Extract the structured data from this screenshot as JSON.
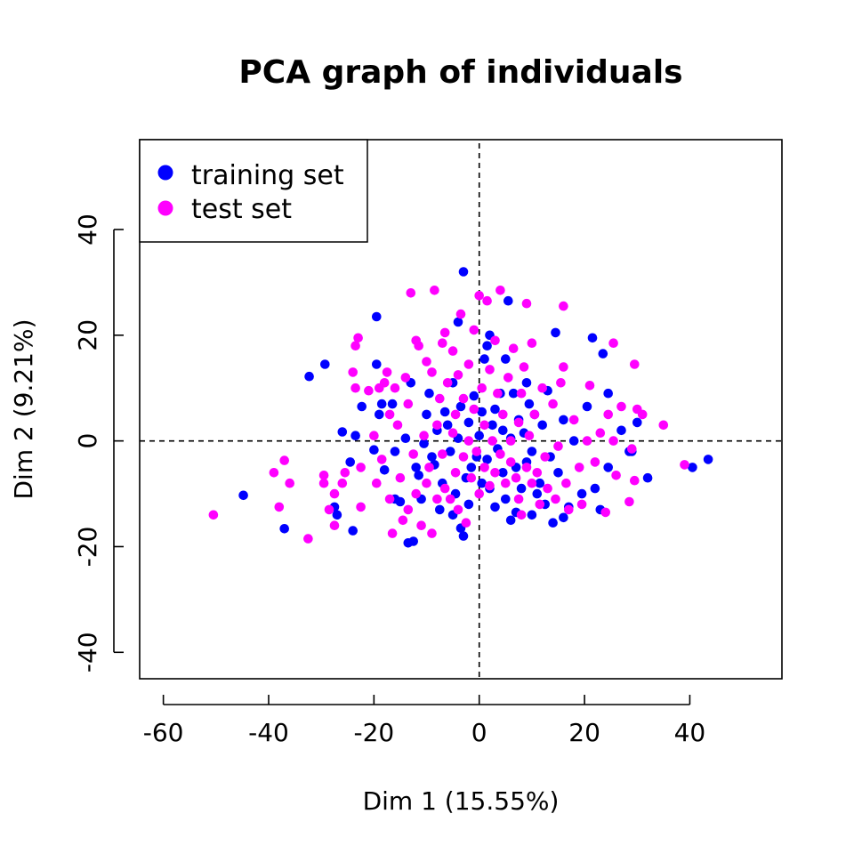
{
  "chart_data": {
    "type": "scatter",
    "title": "PCA graph of individuals",
    "xlabel": "Dim 1 (15.55%)",
    "ylabel": "Dim 2 (9.21%)",
    "xlim": [
      -64.5,
      57.5
    ],
    "ylim": [
      -45,
      57
    ],
    "x_ticks": [
      -60,
      -40,
      -20,
      0,
      20,
      40
    ],
    "y_ticks": [
      -40,
      -20,
      0,
      20,
      40
    ],
    "x_tick_labels": [
      "-60",
      "-40",
      "-20",
      "0",
      "20",
      "40"
    ],
    "y_tick_labels": [
      "-40",
      "-20",
      "0",
      "20",
      "40"
    ],
    "reference_lines": {
      "x": 0,
      "y": 0,
      "style": "dashed"
    },
    "grid": false,
    "legend_position": "top-left",
    "series": [
      {
        "name": "training set",
        "color": "#0000ff",
        "points": [
          [
            -44.8,
            -10.3
          ],
          [
            -37,
            -16.6
          ],
          [
            -32.3,
            12.2
          ],
          [
            -29.3,
            14.5
          ],
          [
            -27,
            -14
          ],
          [
            -27.5,
            -12.5
          ],
          [
            -26,
            1.7
          ],
          [
            -24.5,
            -4
          ],
          [
            -24,
            -17
          ],
          [
            -23.5,
            1
          ],
          [
            -22.3,
            6.5
          ],
          [
            -20,
            -1.7
          ],
          [
            -19.5,
            23.5
          ],
          [
            -19.5,
            14.5
          ],
          [
            -19,
            5
          ],
          [
            -18.5,
            7
          ],
          [
            -18,
            -5.5
          ],
          [
            -16.5,
            7
          ],
          [
            -16,
            -2
          ],
          [
            -16,
            -11
          ],
          [
            -15,
            -11.5
          ],
          [
            -14,
            0.5
          ],
          [
            -13.5,
            -19.3
          ],
          [
            -13,
            11
          ],
          [
            -12.5,
            -19
          ],
          [
            -12,
            -5
          ],
          [
            -11.5,
            -6.5
          ],
          [
            -11,
            -11
          ],
          [
            -10.5,
            -0.5
          ],
          [
            -10,
            5
          ],
          [
            -9.5,
            9
          ],
          [
            -9,
            -3
          ],
          [
            -8.5,
            -4.5
          ],
          [
            -8,
            2
          ],
          [
            -7.5,
            -13
          ],
          [
            -7,
            -8
          ],
          [
            -6.5,
            5.5
          ],
          [
            -6,
            3
          ],
          [
            -5.5,
            -2
          ],
          [
            -5,
            11
          ],
          [
            -5,
            -14
          ],
          [
            -4.5,
            -10
          ],
          [
            -4,
            0.5
          ],
          [
            -4,
            22.5
          ],
          [
            -3.5,
            -16.5
          ],
          [
            -3.5,
            6.5
          ],
          [
            -3,
            -18
          ],
          [
            -3,
            32
          ],
          [
            -2.5,
            -7
          ],
          [
            -2,
            3.5
          ],
          [
            -2,
            -12
          ],
          [
            -1.5,
            -5
          ],
          [
            -1,
            8.5
          ],
          [
            -0.5,
            -3
          ],
          [
            0,
            1
          ],
          [
            0.5,
            5.5
          ],
          [
            0.5,
            -8
          ],
          [
            1,
            15.5
          ],
          [
            1.5,
            -3.5
          ],
          [
            1.5,
            18
          ],
          [
            2,
            20
          ],
          [
            2,
            -9
          ],
          [
            2.5,
            3
          ],
          [
            3,
            6
          ],
          [
            3,
            -12.5
          ],
          [
            3.5,
            -1.5
          ],
          [
            4,
            9
          ],
          [
            4.5,
            2
          ],
          [
            4.5,
            -6
          ],
          [
            5,
            15.5
          ],
          [
            5,
            -11
          ],
          [
            5.5,
            26.5
          ],
          [
            6,
            0.5
          ],
          [
            6,
            -15
          ],
          [
            6.5,
            9
          ],
          [
            7,
            -5
          ],
          [
            7,
            -13.5
          ],
          [
            7.5,
            4
          ],
          [
            8,
            -9
          ],
          [
            8.5,
            1.5
          ],
          [
            9,
            11
          ],
          [
            9,
            -4
          ],
          [
            9.5,
            7
          ],
          [
            10,
            -2
          ],
          [
            10,
            -14
          ],
          [
            10.5,
            5
          ],
          [
            11,
            -10
          ],
          [
            11.5,
            -8
          ],
          [
            12,
            3
          ],
          [
            12.5,
            -12
          ],
          [
            13,
            9.5
          ],
          [
            13.5,
            -3
          ],
          [
            14,
            -15.5
          ],
          [
            14.5,
            20.5
          ],
          [
            15,
            -6
          ],
          [
            16,
            4
          ],
          [
            16,
            -14.5
          ],
          [
            17,
            -12.5
          ],
          [
            18,
            0
          ],
          [
            19.5,
            -10
          ],
          [
            20.5,
            6.5
          ],
          [
            21.5,
            19.5
          ],
          [
            22,
            -9
          ],
          [
            23,
            -13
          ],
          [
            23.5,
            16.5
          ],
          [
            24.5,
            9
          ],
          [
            24.5,
            -5
          ],
          [
            27,
            2
          ],
          [
            28.5,
            -2
          ],
          [
            29,
            -2
          ],
          [
            30,
            3.5
          ],
          [
            32,
            -7
          ],
          [
            40.5,
            -5
          ],
          [
            43.5,
            -3.5
          ]
        ]
      },
      {
        "name": "test set",
        "color": "#ff00ff",
        "points": [
          [
            -50.5,
            -14
          ],
          [
            -39,
            -6
          ],
          [
            -38,
            -12.5
          ],
          [
            -37,
            -3.7
          ],
          [
            -36,
            -8
          ],
          [
            -32.5,
            -18.5
          ],
          [
            -29.5,
            -6.5
          ],
          [
            -29.5,
            -8
          ],
          [
            -28.5,
            -13
          ],
          [
            -27.5,
            -16
          ],
          [
            -27.5,
            -10
          ],
          [
            -26,
            -8
          ],
          [
            -25.5,
            -6
          ],
          [
            -24,
            13
          ],
          [
            -23.5,
            10
          ],
          [
            -23.5,
            18
          ],
          [
            -23,
            19.5
          ],
          [
            -22.5,
            -5
          ],
          [
            -22.5,
            -12.5
          ],
          [
            -21,
            9.5
          ],
          [
            -20,
            1
          ],
          [
            -19.5,
            -8
          ],
          [
            -19,
            10
          ],
          [
            -18.5,
            -3.5
          ],
          [
            -18,
            11
          ],
          [
            -17.5,
            13
          ],
          [
            -17,
            5
          ],
          [
            -17,
            -11
          ],
          [
            -16.5,
            -17.5
          ],
          [
            -16,
            10
          ],
          [
            -15.5,
            3
          ],
          [
            -15,
            -7
          ],
          [
            -14.5,
            -15
          ],
          [
            -14,
            12
          ],
          [
            -13.5,
            7
          ],
          [
            -13.5,
            -13
          ],
          [
            -13,
            28
          ],
          [
            -12.5,
            -2.5
          ],
          [
            -12,
            19
          ],
          [
            -12,
            -10
          ],
          [
            -11.5,
            18
          ],
          [
            -11,
            -16
          ],
          [
            -10.5,
            1
          ],
          [
            -10,
            15
          ],
          [
            -10,
            -8
          ],
          [
            -9.5,
            -5
          ],
          [
            -9,
            13
          ],
          [
            -9,
            -17.5
          ],
          [
            -8.5,
            28.5
          ],
          [
            -8,
            3
          ],
          [
            -8,
            -11
          ],
          [
            -7.5,
            8
          ],
          [
            -7,
            18.5
          ],
          [
            -7,
            -2.5
          ],
          [
            -6.5,
            20.5
          ],
          [
            -6.5,
            -9
          ],
          [
            -6,
            11
          ],
          [
            -5.5,
            -11
          ],
          [
            -5,
            1.5
          ],
          [
            -5,
            17
          ],
          [
            -4.5,
            5
          ],
          [
            -4.5,
            -6
          ],
          [
            -4,
            12.5
          ],
          [
            -4,
            -13
          ],
          [
            -3.5,
            24
          ],
          [
            -3,
            8
          ],
          [
            -3,
            -3
          ],
          [
            -2.5,
            -15.5
          ],
          [
            -2,
            14.5
          ],
          [
            -2,
            0
          ],
          [
            -1.5,
            -7
          ],
          [
            -1,
            21
          ],
          [
            -1,
            6
          ],
          [
            -0.5,
            -2
          ],
          [
            0,
            27.5
          ],
          [
            0,
            -10
          ],
          [
            0.5,
            10
          ],
          [
            1,
            3
          ],
          [
            1,
            -5
          ],
          [
            1.5,
            26.5
          ],
          [
            2,
            13.5
          ],
          [
            2,
            -8.5
          ],
          [
            2.5,
            0
          ],
          [
            3,
            19
          ],
          [
            3,
            -6
          ],
          [
            3.5,
            9
          ],
          [
            4,
            28.5
          ],
          [
            4,
            -2.5
          ],
          [
            4.5,
            5
          ],
          [
            5,
            -8
          ],
          [
            5.5,
            12
          ],
          [
            6,
            0
          ],
          [
            6,
            -4
          ],
          [
            6.5,
            17.5
          ],
          [
            7,
            -7
          ],
          [
            7.5,
            3.5
          ],
          [
            7.5,
            -11
          ],
          [
            8,
            9
          ],
          [
            8,
            -14
          ],
          [
            8.5,
            14
          ],
          [
            9,
            -5
          ],
          [
            9,
            26
          ],
          [
            9.5,
            1
          ],
          [
            10,
            -8
          ],
          [
            10,
            18.5
          ],
          [
            10.5,
            5
          ],
          [
            11,
            -6
          ],
          [
            11.5,
            -12
          ],
          [
            12,
            10
          ],
          [
            12.5,
            -3
          ],
          [
            13,
            -9
          ],
          [
            14,
            7
          ],
          [
            14.5,
            -11
          ],
          [
            15,
            -1
          ],
          [
            15.5,
            11
          ],
          [
            16,
            14
          ],
          [
            16,
            25.5
          ],
          [
            16.5,
            -8
          ],
          [
            17,
            -13
          ],
          [
            18,
            4
          ],
          [
            19,
            -5
          ],
          [
            19.5,
            -12
          ],
          [
            20.5,
            0
          ],
          [
            21,
            10.5
          ],
          [
            22,
            -4
          ],
          [
            23,
            1.5
          ],
          [
            24,
            -13.5
          ],
          [
            24.5,
            5
          ],
          [
            25.5,
            18.5
          ],
          [
            25.5,
            0
          ],
          [
            26,
            -6.5
          ],
          [
            27,
            6.5
          ],
          [
            28.5,
            -11.5
          ],
          [
            29,
            -1.5
          ],
          [
            29.5,
            14.5
          ],
          [
            29.5,
            -7.5
          ],
          [
            30,
            6
          ],
          [
            31,
            5
          ],
          [
            35,
            3
          ],
          [
            39,
            -4.5
          ]
        ]
      }
    ]
  }
}
